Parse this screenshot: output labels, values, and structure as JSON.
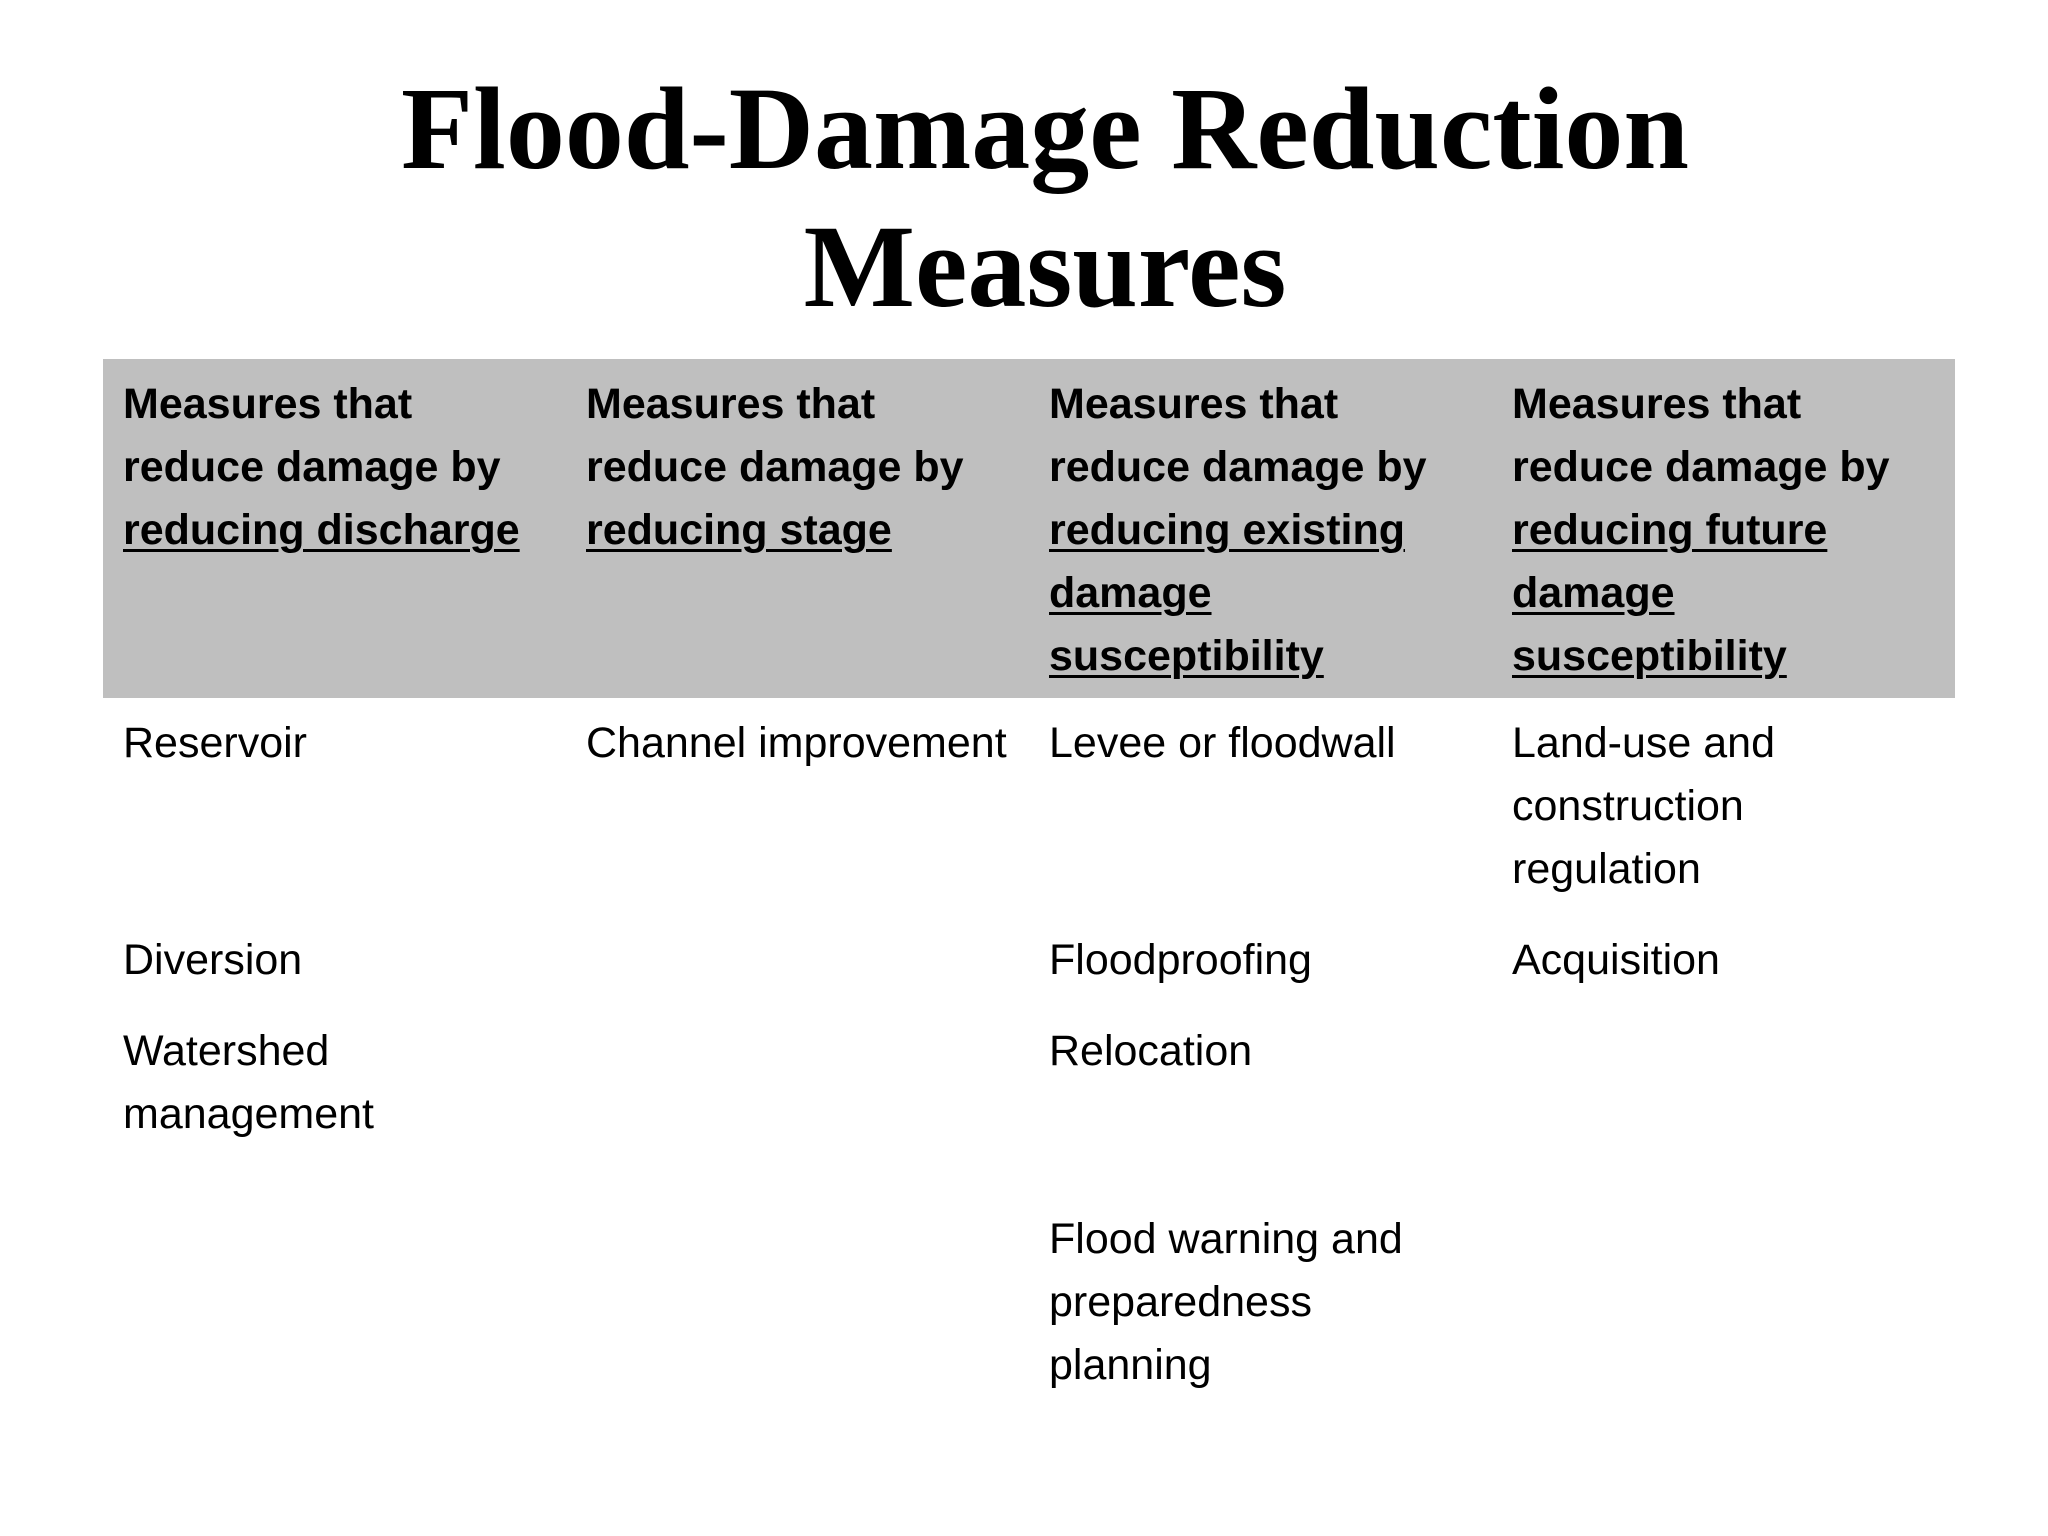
{
  "title": {
    "line1": "Flood-Damage Reduction",
    "line2": "Measures"
  },
  "table": {
    "headers": [
      {
        "prefix": "Measures that reduce damage by",
        "emphasis": "reducing discharge"
      },
      {
        "prefix": "Measures that reduce damage by",
        "emphasis": "reducing stage"
      },
      {
        "prefix": "Measures that reduce damage by",
        "emphasis": "reducing existing damage susceptibility"
      },
      {
        "prefix": "Measures that reduce damage by",
        "emphasis": "reducing future damage susceptibility"
      }
    ],
    "rows": [
      [
        "Reservoir",
        "Channel improvement",
        "Levee or floodwall",
        "Land-use and construction regulation"
      ],
      [
        "Diversion",
        "",
        "Floodproofing",
        "Acquisition"
      ],
      [
        "Watershed management",
        "",
        "Relocation",
        ""
      ],
      [
        "",
        "",
        "Flood warning and preparedness planning",
        ""
      ]
    ]
  }
}
